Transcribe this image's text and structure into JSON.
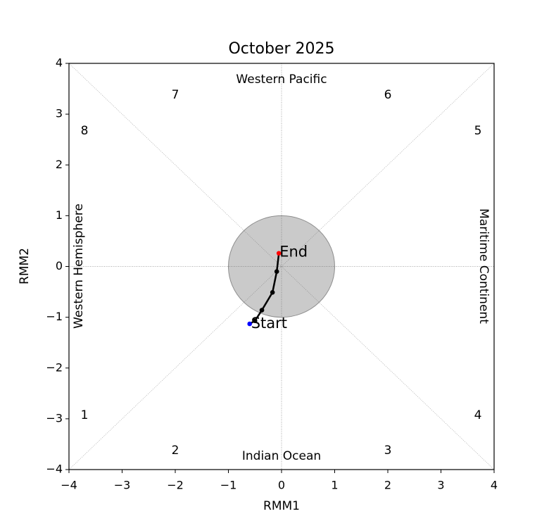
{
  "chart_data": {
    "type": "line",
    "title": "October 2025",
    "xlabel": "RMM1",
    "ylabel": "RMM2",
    "x": [
      -0.6,
      -0.5,
      -0.37,
      -0.17,
      -0.09,
      -0.05
    ],
    "values": [
      -1.13,
      -1.07,
      -0.86,
      -0.51,
      -0.1,
      0.26
    ],
    "color": "#000000",
    "start_label": "Start",
    "start_color": "#0000ff",
    "end_label": "End",
    "end_color": "#ff0000",
    "circle_radius": 1,
    "circle_color": "#c8c8c8",
    "regions": [
      "Western Pacific",
      "Indian Ocean",
      "Western Hemisphere",
      "Maritime Continent"
    ],
    "phases": [
      1,
      2,
      3,
      4,
      5,
      6,
      7,
      8
    ],
    "xlim": [
      -4,
      4
    ],
    "ylim": [
      -4,
      4
    ],
    "xticks": [
      {
        "value": -4,
        "label": "−4"
      },
      {
        "value": -3,
        "label": "−3"
      },
      {
        "value": -2,
        "label": "−2"
      },
      {
        "value": -1,
        "label": "−1"
      },
      0,
      1,
      2,
      3,
      4
    ],
    "yticks": [
      {
        "value": -4,
        "label": "−4"
      },
      {
        "value": -3,
        "label": "−3"
      },
      {
        "value": -2,
        "label": "−2"
      },
      {
        "value": -1,
        "label": "−1"
      },
      0,
      1,
      2,
      3,
      4
    ]
  }
}
